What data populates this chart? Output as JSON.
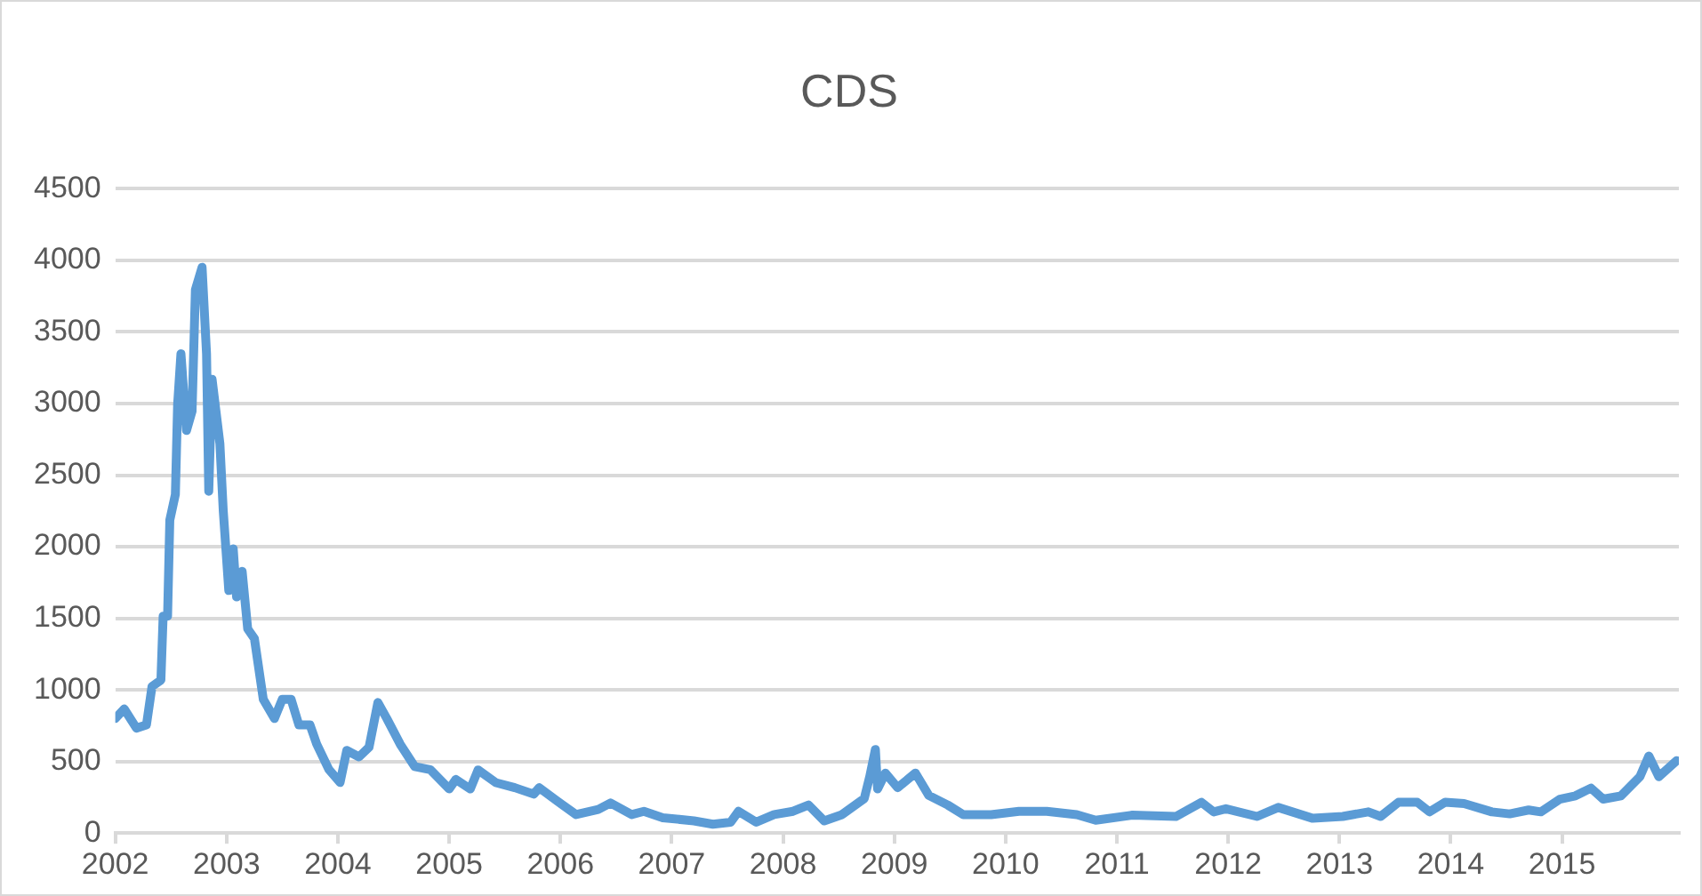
{
  "chart_data": {
    "type": "line",
    "title": "CDS",
    "xlim": [
      2002,
      2016.05
    ],
    "xticks": [
      2002,
      2003,
      2004,
      2005,
      2006,
      2007,
      2008,
      2009,
      2010,
      2011,
      2012,
      2013,
      2014,
      2015
    ],
    "ylim": [
      0,
      4500
    ],
    "yticks": [
      0,
      500,
      1000,
      1500,
      2000,
      2500,
      3000,
      3500,
      4000,
      4500
    ],
    "grid": "y",
    "legend": false,
    "marker": "none",
    "line_style": "solid",
    "series": [
      {
        "color": "#5b9bd5",
        "x": [
          2002.0,
          2002.08,
          2002.19,
          2002.28,
          2002.33,
          2002.41,
          2002.43,
          2002.47,
          2002.49,
          2002.54,
          2002.56,
          2002.59,
          2002.64,
          2002.69,
          2002.72,
          2002.78,
          2002.82,
          2002.84,
          2002.87,
          2002.94,
          2002.97,
          2003.02,
          2003.06,
          2003.09,
          2003.14,
          2003.19,
          2003.25,
          2003.33,
          2003.43,
          2003.5,
          2003.58,
          2003.65,
          2003.75,
          2003.81,
          2003.92,
          2004.02,
          2004.08,
          2004.19,
          2004.28,
          2004.36,
          2004.44,
          2004.56,
          2004.69,
          2004.83,
          2005.0,
          2005.06,
          2005.19,
          2005.26,
          2005.42,
          2005.59,
          2005.76,
          2005.81,
          2005.98,
          2006.14,
          2006.34,
          2006.45,
          2006.64,
          2006.75,
          2006.92,
          2007.2,
          2007.37,
          2007.53,
          2007.6,
          2007.76,
          2007.92,
          2008.09,
          2008.23,
          2008.37,
          2008.53,
          2008.73,
          2008.78,
          2008.83,
          2008.85,
          2008.92,
          2009.03,
          2009.19,
          2009.31,
          2009.48,
          2009.62,
          2009.87,
          2010.12,
          2010.37,
          2010.64,
          2010.81,
          2011.14,
          2011.53,
          2011.76,
          2011.87,
          2011.98,
          2012.26,
          2012.45,
          2012.76,
          2013.03,
          2013.26,
          2013.37,
          2013.53,
          2013.7,
          2013.81,
          2013.95,
          2014.12,
          2014.37,
          2014.53,
          2014.7,
          2014.81,
          2014.98,
          2015.12,
          2015.26,
          2015.37,
          2015.53,
          2015.7,
          2015.78,
          2015.87,
          2016.03
        ],
        "values": [
          800,
          867,
          733,
          755,
          1024,
          1068,
          1515,
          1515,
          2186,
          2365,
          2990,
          3348,
          2812,
          2946,
          3795,
          3952,
          3348,
          2387,
          3169,
          2722,
          2253,
          1694,
          1985,
          1649,
          1828,
          1426,
          1359,
          934,
          800,
          934,
          934,
          755,
          755,
          621,
          443,
          353,
          577,
          532,
          599,
          912,
          800,
          621,
          465,
          443,
          308,
          375,
          308,
          441,
          352,
          317,
          272,
          317,
          219,
          129,
          165,
          210,
          129,
          152,
          107,
          85,
          62,
          76,
          152,
          76,
          129,
          152,
          196,
          85,
          129,
          241,
          397,
          584,
          308,
          419,
          317,
          419,
          263,
          196,
          129,
          129,
          152,
          152,
          129,
          90,
          125,
          116,
          215,
          148,
          170,
          116,
          179,
          103,
          116,
          148,
          116,
          215,
          215,
          148,
          215,
          206,
          148,
          134,
          161,
          148,
          237,
          260,
          314,
          237,
          260,
          394,
          538,
          394,
          506
        ]
      }
    ]
  }
}
